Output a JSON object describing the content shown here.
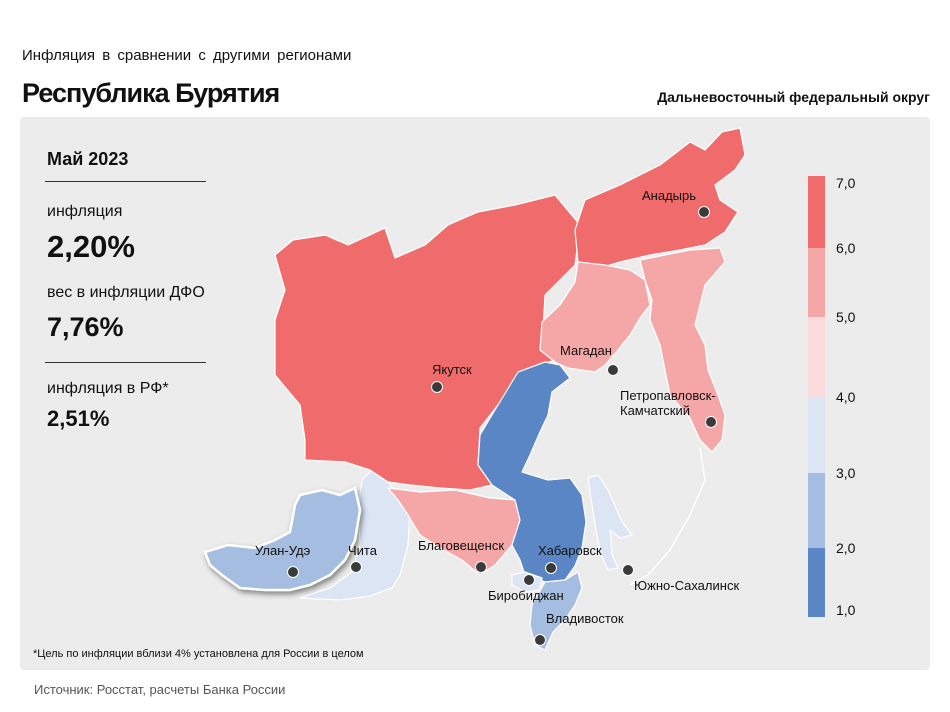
{
  "header": {
    "subtitle": "Инфляция  в сравнении  с другими  регионами",
    "title": "Республика Бурятия",
    "district": "Дальневосточный федеральный округ"
  },
  "stats": {
    "period": "Май 2023",
    "inflation_label": "инфляция",
    "inflation_value": "2,20%",
    "weight_label": "вес в инфляции  ДФО",
    "weight_value": "7,76%",
    "rf_label": "инфляция  в РФ*",
    "rf_value": "2,51%"
  },
  "cities": {
    "anadyr": "Анадырь",
    "yakutsk": "Якутск",
    "magadan": "Магадан",
    "petropavlovsk_1": "Петропавловск-",
    "petropavlovsk_2": "Камчатский",
    "ulan_ude": "Улан-Удэ",
    "chita": "Чита",
    "blagoveshchensk": "Благовещенск",
    "khabarovsk": "Хабаровск",
    "birobidzhan": "Биробиджан",
    "yuzhno": "Южно-Сахалинск",
    "vladivostok": "Владивосток"
  },
  "legend": {
    "ticks": [
      "7,0",
      "6,0",
      "5,0",
      "4,0",
      "3,0",
      "2,0",
      "1,0"
    ],
    "colors": [
      "#f06b6b",
      "#f5a7a7",
      "#fbdcdc",
      "#dce5f4",
      "#a5bde0",
      "#5b86c5"
    ]
  },
  "footnote": "*Цель по инфляции вблизи 4% установлена для России в целом",
  "source": "Источник: Росстат, расчеты Банка России"
}
